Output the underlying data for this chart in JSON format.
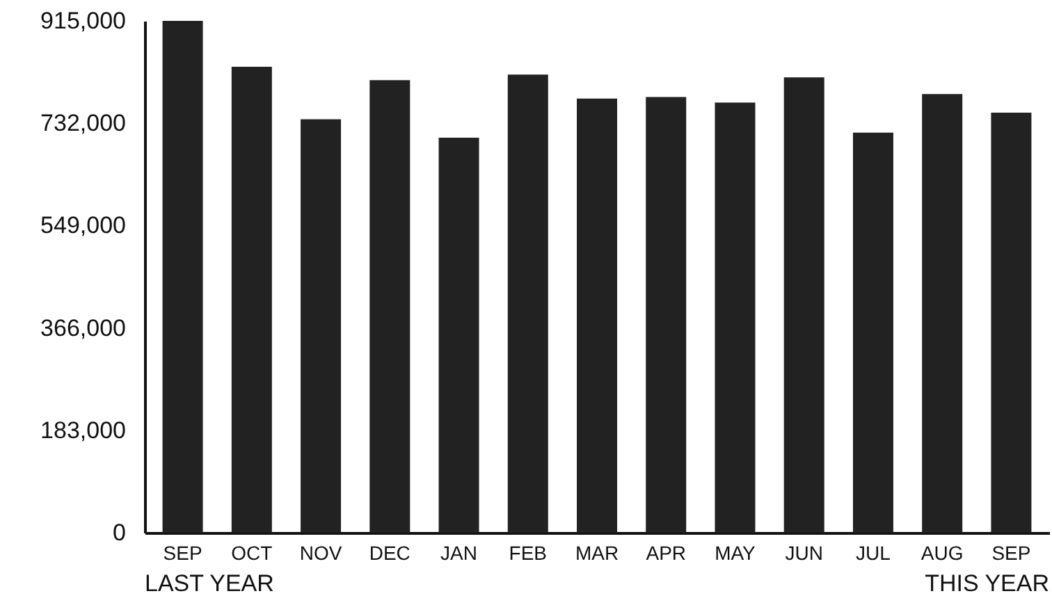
{
  "chart_data": {
    "type": "bar",
    "categories": [
      "SEP",
      "OCT",
      "NOV",
      "DEC",
      "JAN",
      "FEB",
      "MAR",
      "APR",
      "MAY",
      "JUN",
      "JUL",
      "AUG",
      "SEP"
    ],
    "values": [
      915000,
      833000,
      739000,
      809000,
      706000,
      819000,
      776000,
      779000,
      769000,
      814000,
      715000,
      784000,
      751000
    ],
    "color": "#222222",
    "ylim": [
      0,
      915000
    ],
    "yticks": [
      0,
      {
        "value": 183000,
        "label": "183,000"
      },
      {
        "value": 366000,
        "label": "366,000"
      },
      {
        "value": 549000,
        "label": "549,000"
      },
      {
        "value": 732000,
        "label": "732,000"
      },
      {
        "value": 915000,
        "label": "915,000"
      }
    ],
    "annotations": [
      "LAST YEAR",
      "THIS YEAR"
    ]
  }
}
